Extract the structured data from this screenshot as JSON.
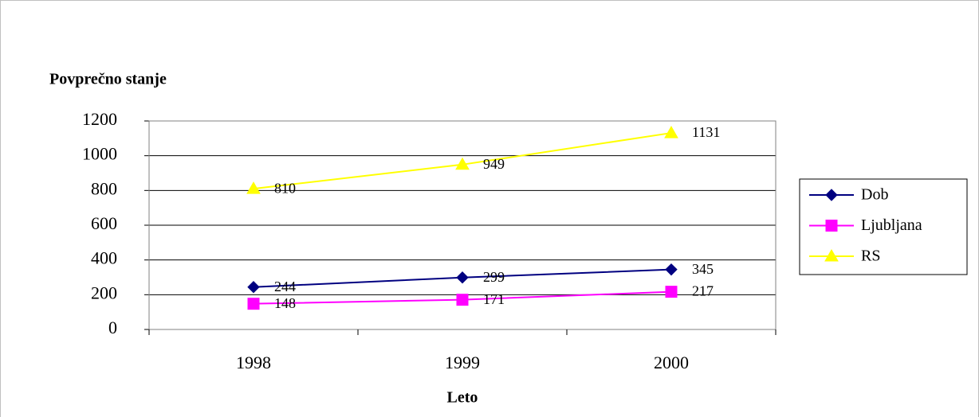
{
  "chart_data": {
    "type": "line",
    "title": "Povprečno stanje",
    "x_label": "Leto",
    "categories": [
      "1998",
      "1999",
      "2000"
    ],
    "series": [
      {
        "name": "Dob",
        "color": "#000080",
        "marker": "diamond",
        "values": [
          244,
          299,
          345
        ]
      },
      {
        "name": "Ljubljana",
        "color": "#ff00ff",
        "marker": "square",
        "values": [
          148,
          171,
          217
        ]
      },
      {
        "name": "RS",
        "color": "#ffff00",
        "marker": "triangle",
        "values": [
          810,
          949,
          1131
        ]
      }
    ],
    "ylim": [
      0,
      1200
    ],
    "yticks": [
      0,
      200,
      400,
      600,
      800,
      1000,
      1200
    ],
    "grid": true,
    "legend": "right",
    "data_labels": true
  }
}
